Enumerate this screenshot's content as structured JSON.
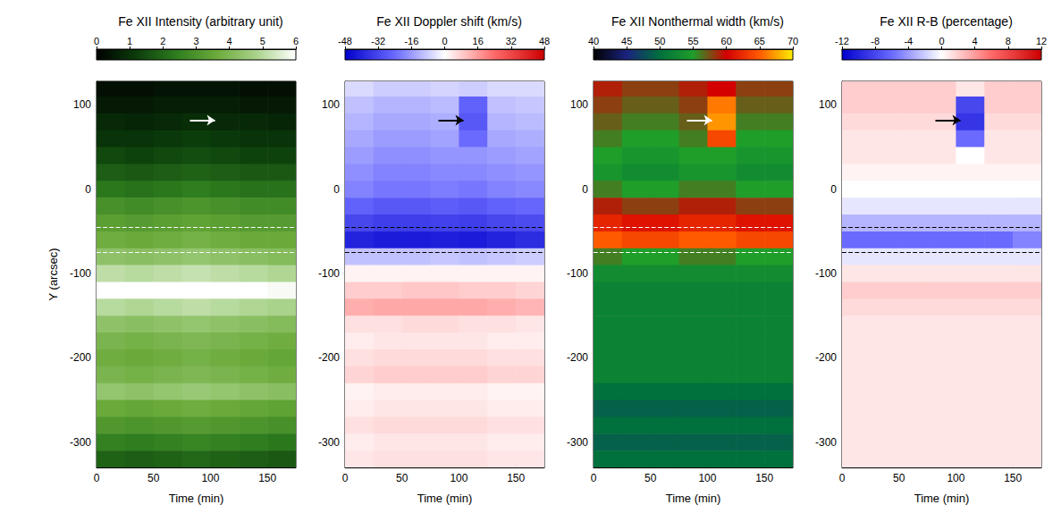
{
  "chart_data": [
    {
      "type": "heatmap",
      "title": "Fe XII Intensity (arbitrary unit)",
      "x_label": "Time (min)",
      "y_label": "Y (arcsec)",
      "xlim": [
        0,
        175
      ],
      "xticks": [
        0,
        50,
        100,
        150
      ],
      "ylim": [
        -330,
        128
      ],
      "yticks": [
        100,
        0,
        -100,
        -200,
        -300
      ],
      "x": [
        12.5,
        37.5,
        62.5,
        87.5,
        112.5,
        137.5,
        162.5
      ],
      "y": [
        120,
        100,
        80,
        60,
        40,
        20,
        0,
        -20,
        -40,
        -60,
        -80,
        -100,
        -120,
        -140,
        -160,
        -180,
        -200,
        -220,
        -240,
        -260,
        -280,
        -300,
        -320
      ],
      "values": [
        [
          0.3,
          0.3,
          0.4,
          0.4,
          0.4,
          0.3,
          0.3
        ],
        [
          0.5,
          0.5,
          0.6,
          0.6,
          0.6,
          0.5,
          0.5
        ],
        [
          0.8,
          0.7,
          0.8,
          0.9,
          0.8,
          0.8,
          0.7
        ],
        [
          1.0,
          1.0,
          1.1,
          1.2,
          1.1,
          1.0,
          1.0
        ],
        [
          1.4,
          1.3,
          1.4,
          1.5,
          1.4,
          1.3,
          1.3
        ],
        [
          1.8,
          1.7,
          1.8,
          1.9,
          1.8,
          1.7,
          1.7
        ],
        [
          2.3,
          2.2,
          2.3,
          2.4,
          2.3,
          2.2,
          2.2
        ],
        [
          2.9,
          2.8,
          2.9,
          3.0,
          2.9,
          2.8,
          2.8
        ],
        [
          3.3,
          3.2,
          3.3,
          3.4,
          3.3,
          3.2,
          3.2
        ],
        [
          3.7,
          3.6,
          3.7,
          3.8,
          3.7,
          3.6,
          3.6
        ],
        [
          4.3,
          4.2,
          4.3,
          4.4,
          4.3,
          4.2,
          4.1
        ],
        [
          5.1,
          5.0,
          5.1,
          5.2,
          5.1,
          5.0,
          4.9
        ],
        [
          6.0,
          6.0,
          6.0,
          6.0,
          6.0,
          6.0,
          5.9
        ],
        [
          5.0,
          4.9,
          5.0,
          5.1,
          5.0,
          4.9,
          4.8
        ],
        [
          4.3,
          4.2,
          4.3,
          4.4,
          4.3,
          4.2,
          4.1
        ],
        [
          3.9,
          3.8,
          3.9,
          4.0,
          3.9,
          3.8,
          3.7
        ],
        [
          3.7,
          3.6,
          3.7,
          3.8,
          3.7,
          3.6,
          3.5
        ],
        [
          3.9,
          3.8,
          3.9,
          4.0,
          3.9,
          3.8,
          3.7
        ],
        [
          4.4,
          4.3,
          4.4,
          4.5,
          4.4,
          4.3,
          4.2
        ],
        [
          3.6,
          3.5,
          3.6,
          3.7,
          3.6,
          3.5,
          3.4
        ],
        [
          3.1,
          3.0,
          3.1,
          3.2,
          3.1,
          3.0,
          2.9
        ],
        [
          2.5,
          2.4,
          2.5,
          2.6,
          2.5,
          2.4,
          2.3
        ],
        [
          1.9,
          1.8,
          1.9,
          2.0,
          1.9,
          1.8,
          1.7
        ]
      ],
      "colorbar": {
        "range": [
          0,
          6
        ],
        "ticks": [
          0,
          1,
          2,
          3,
          4,
          5,
          6
        ],
        "colors": [
          "#000000",
          "#0b3d0b",
          "#2e7d1e",
          "#6aaa3a",
          "#a9d28a",
          "#ffffff"
        ]
      },
      "hlines": {
        "values": [
          -45,
          -75
        ],
        "color": "#ffffff",
        "line_style": "dashed"
      },
      "arrow": {
        "x": 104,
        "y": 82,
        "color": "#ffffff"
      }
    },
    {
      "type": "heatmap",
      "title": "Fe XII Doppler shift (km/s)",
      "x_label": "Time (min)",
      "xlim": [
        0,
        175
      ],
      "xticks": [
        0,
        50,
        100,
        150
      ],
      "ylim": [
        -330,
        128
      ],
      "yticks": [
        100,
        0,
        -100,
        -200,
        -300
      ],
      "x": [
        12.5,
        37.5,
        62.5,
        87.5,
        112.5,
        137.5,
        162.5
      ],
      "y": [
        120,
        100,
        80,
        60,
        40,
        20,
        0,
        -20,
        -40,
        -60,
        -80,
        -100,
        -120,
        -140,
        -160,
        -180,
        -200,
        -220,
        -240,
        -260,
        -280,
        -300,
        -320
      ],
      "values": [
        [
          -6,
          -8,
          -8,
          -7,
          -8,
          -6,
          -6
        ],
        [
          -10,
          -12,
          -12,
          -11,
          -26,
          -10,
          -9
        ],
        [
          -12,
          -14,
          -14,
          -13,
          -28,
          -12,
          -11
        ],
        [
          -14,
          -16,
          -16,
          -15,
          -24,
          -14,
          -13
        ],
        [
          -16,
          -18,
          -18,
          -17,
          -17,
          -16,
          -15
        ],
        [
          -18,
          -20,
          -20,
          -19,
          -19,
          -18,
          -17
        ],
        [
          -20,
          -22,
          -22,
          -21,
          -22,
          -20,
          -19
        ],
        [
          -26,
          -28,
          -28,
          -27,
          -28,
          -26,
          -25
        ],
        [
          -32,
          -34,
          -34,
          -33,
          -34,
          -32,
          -31
        ],
        [
          -40,
          -42,
          -42,
          -41,
          -42,
          -40,
          -38
        ],
        [
          -10,
          -10,
          -10,
          -9,
          -10,
          -9,
          -8
        ],
        [
          2,
          2,
          2,
          2,
          2,
          2,
          2
        ],
        [
          8,
          8,
          9,
          9,
          8,
          8,
          7
        ],
        [
          13,
          14,
          14,
          14,
          14,
          13,
          12
        ],
        [
          5,
          5,
          6,
          6,
          5,
          5,
          4
        ],
        [
          3,
          4,
          4,
          4,
          4,
          3,
          3
        ],
        [
          5,
          6,
          6,
          6,
          6,
          5,
          5
        ],
        [
          7,
          8,
          8,
          8,
          8,
          7,
          7
        ],
        [
          2,
          3,
          3,
          3,
          3,
          2,
          2
        ],
        [
          3,
          4,
          4,
          4,
          4,
          3,
          3
        ],
        [
          5,
          6,
          6,
          6,
          6,
          5,
          5
        ],
        [
          3,
          4,
          4,
          4,
          4,
          3,
          3
        ],
        [
          4,
          5,
          5,
          5,
          5,
          4,
          4
        ]
      ],
      "colorbar": {
        "range": [
          -48,
          48
        ],
        "ticks": [
          -48,
          -32,
          -16,
          0,
          16,
          32,
          48
        ],
        "colors": [
          "#0000cc",
          "#6a6aff",
          "#ffffff",
          "#ff6a6a",
          "#cc0000"
        ]
      },
      "hlines": {
        "values": [
          -45,
          -75
        ],
        "color": "#000000",
        "line_style": "dashed"
      },
      "arrow": {
        "x": 104,
        "y": 82,
        "color": "#000000"
      }
    },
    {
      "type": "heatmap",
      "title": "Fe XII Nonthermal width (km/s)",
      "x_label": "Time (min)",
      "xlim": [
        0,
        175
      ],
      "xticks": [
        0,
        50,
        100,
        150
      ],
      "ylim": [
        -330,
        128
      ],
      "yticks": [
        100,
        0,
        -100,
        -200,
        -300
      ],
      "x": [
        12.5,
        37.5,
        62.5,
        87.5,
        112.5,
        137.5,
        162.5
      ],
      "y": [
        120,
        100,
        80,
        60,
        40,
        20,
        0,
        -20,
        -40,
        -60,
        -80,
        -100,
        -120,
        -140,
        -160,
        -180,
        -200,
        -220,
        -240,
        -260,
        -280,
        -300,
        -320
      ],
      "values": [
        [
          59,
          58,
          58,
          59,
          60,
          58,
          58
        ],
        [
          58,
          57,
          57,
          58,
          66,
          57,
          57
        ],
        [
          57,
          56,
          56,
          57,
          67,
          56,
          56
        ],
        [
          56,
          55,
          55,
          56,
          64,
          55,
          55
        ],
        [
          55,
          54,
          54,
          55,
          55,
          54,
          54
        ],
        [
          54,
          53,
          53,
          54,
          54,
          53,
          53
        ],
        [
          56,
          55,
          55,
          56,
          56,
          55,
          55
        ],
        [
          59,
          58,
          58,
          59,
          59,
          58,
          58
        ],
        [
          62,
          61,
          61,
          62,
          62,
          61,
          61
        ],
        [
          65,
          64,
          64,
          65,
          65,
          64,
          64
        ],
        [
          56,
          55,
          55,
          56,
          56,
          55,
          55
        ],
        [
          53,
          53,
          53,
          53,
          53,
          53,
          53
        ],
        [
          52,
          52,
          52,
          52,
          52,
          52,
          52
        ],
        [
          52,
          52,
          52,
          52,
          52,
          52,
          52
        ],
        [
          52,
          52,
          52,
          52,
          52,
          52,
          52
        ],
        [
          52,
          52,
          52,
          52,
          52,
          52,
          52
        ],
        [
          52,
          52,
          52,
          52,
          52,
          52,
          52
        ],
        [
          52,
          52,
          52,
          52,
          52,
          52,
          52
        ],
        [
          50,
          50,
          50,
          50,
          50,
          50,
          50
        ],
        [
          49,
          49,
          49,
          49,
          49,
          49,
          49
        ],
        [
          50,
          50,
          50,
          50,
          50,
          50,
          50
        ],
        [
          49,
          49,
          49,
          49,
          49,
          49,
          49
        ],
        [
          50,
          50,
          50,
          50,
          50,
          50,
          50
        ]
      ],
      "colorbar": {
        "range": [
          40,
          70
        ],
        "ticks": [
          40,
          45,
          50,
          55,
          60,
          65,
          70
        ],
        "colors": [
          "#000000",
          "#1a237e",
          "#00703c",
          "#1f9e2a",
          "#d40000",
          "#ff5a00",
          "#ffee00"
        ]
      },
      "hlines": {
        "values": [
          -45,
          -75
        ],
        "color": "#ffffff",
        "line_style": "dashed"
      },
      "arrow": {
        "x": 104,
        "y": 82,
        "color": "#ffffff"
      }
    },
    {
      "type": "heatmap",
      "title": "Fe XII R-B (percentage)",
      "x_label": "Time (min)",
      "xlim": [
        0,
        175
      ],
      "xticks": [
        0,
        50,
        100,
        150
      ],
      "ylim": [
        -330,
        128
      ],
      "yticks": [
        100,
        0,
        -100,
        -200,
        -300
      ],
      "x": [
        12.5,
        37.5,
        62.5,
        87.5,
        112.5,
        137.5,
        162.5
      ],
      "y": [
        120,
        100,
        80,
        60,
        40,
        20,
        0,
        -20,
        -40,
        -60,
        -80,
        -100,
        -120,
        -140,
        -160,
        -180,
        -200,
        -220,
        -240,
        -260,
        -280,
        -300,
        -320
      ],
      "values": [
        [
          2,
          2,
          2,
          2,
          1,
          2,
          2
        ],
        [
          2,
          2,
          2,
          2,
          -8,
          2,
          2
        ],
        [
          1.5,
          1.5,
          1.5,
          1.5,
          -9,
          1.5,
          1.5
        ],
        [
          1,
          1,
          1,
          1,
          -6,
          1,
          1
        ],
        [
          1,
          1,
          1,
          1,
          0,
          1,
          1
        ],
        [
          0.5,
          0.5,
          0.5,
          0.5,
          0.5,
          0.5,
          0.5
        ],
        [
          0,
          0,
          0,
          0,
          0,
          0,
          0
        ],
        [
          -1,
          -1,
          -1,
          -1,
          -1,
          -1,
          -1
        ],
        [
          -3,
          -3,
          -3,
          -3,
          -3,
          -3,
          -3
        ],
        [
          -6,
          -6,
          -6,
          -6,
          -6,
          -6,
          -5
        ],
        [
          -1,
          -1,
          -1,
          -1,
          -1,
          -1,
          -1
        ],
        [
          1,
          1,
          1,
          1,
          1,
          1,
          1
        ],
        [
          2,
          2,
          2,
          2,
          2,
          2,
          2
        ],
        [
          1.5,
          1.5,
          1.5,
          1.5,
          1.5,
          1.5,
          1.5
        ],
        [
          1,
          1,
          1,
          1,
          1,
          1,
          1
        ],
        [
          1,
          1,
          1,
          1,
          1,
          1,
          1
        ],
        [
          1,
          1,
          1,
          1,
          1,
          1,
          1
        ],
        [
          1,
          1,
          1,
          1,
          1,
          1,
          1
        ],
        [
          1,
          1,
          1,
          1,
          1,
          1,
          1
        ],
        [
          1,
          1,
          1,
          1,
          1,
          1,
          1
        ],
        [
          1,
          1,
          1,
          1,
          1,
          1,
          1
        ],
        [
          1,
          1,
          1,
          1,
          1,
          1,
          1
        ],
        [
          1,
          1,
          1,
          1,
          1,
          1,
          1
        ]
      ],
      "colorbar": {
        "range": [
          -12,
          12
        ],
        "ticks": [
          -12,
          -8,
          -4,
          0,
          4,
          8,
          12
        ],
        "colors": [
          "#0000cc",
          "#6a6aff",
          "#ffffff",
          "#ff6a6a",
          "#cc0000"
        ]
      },
      "hlines": {
        "values": [
          -45,
          -75
        ],
        "color": "#000000",
        "line_style": "dashed"
      },
      "arrow": {
        "x": 104,
        "y": 82,
        "color": "#000000"
      }
    }
  ]
}
